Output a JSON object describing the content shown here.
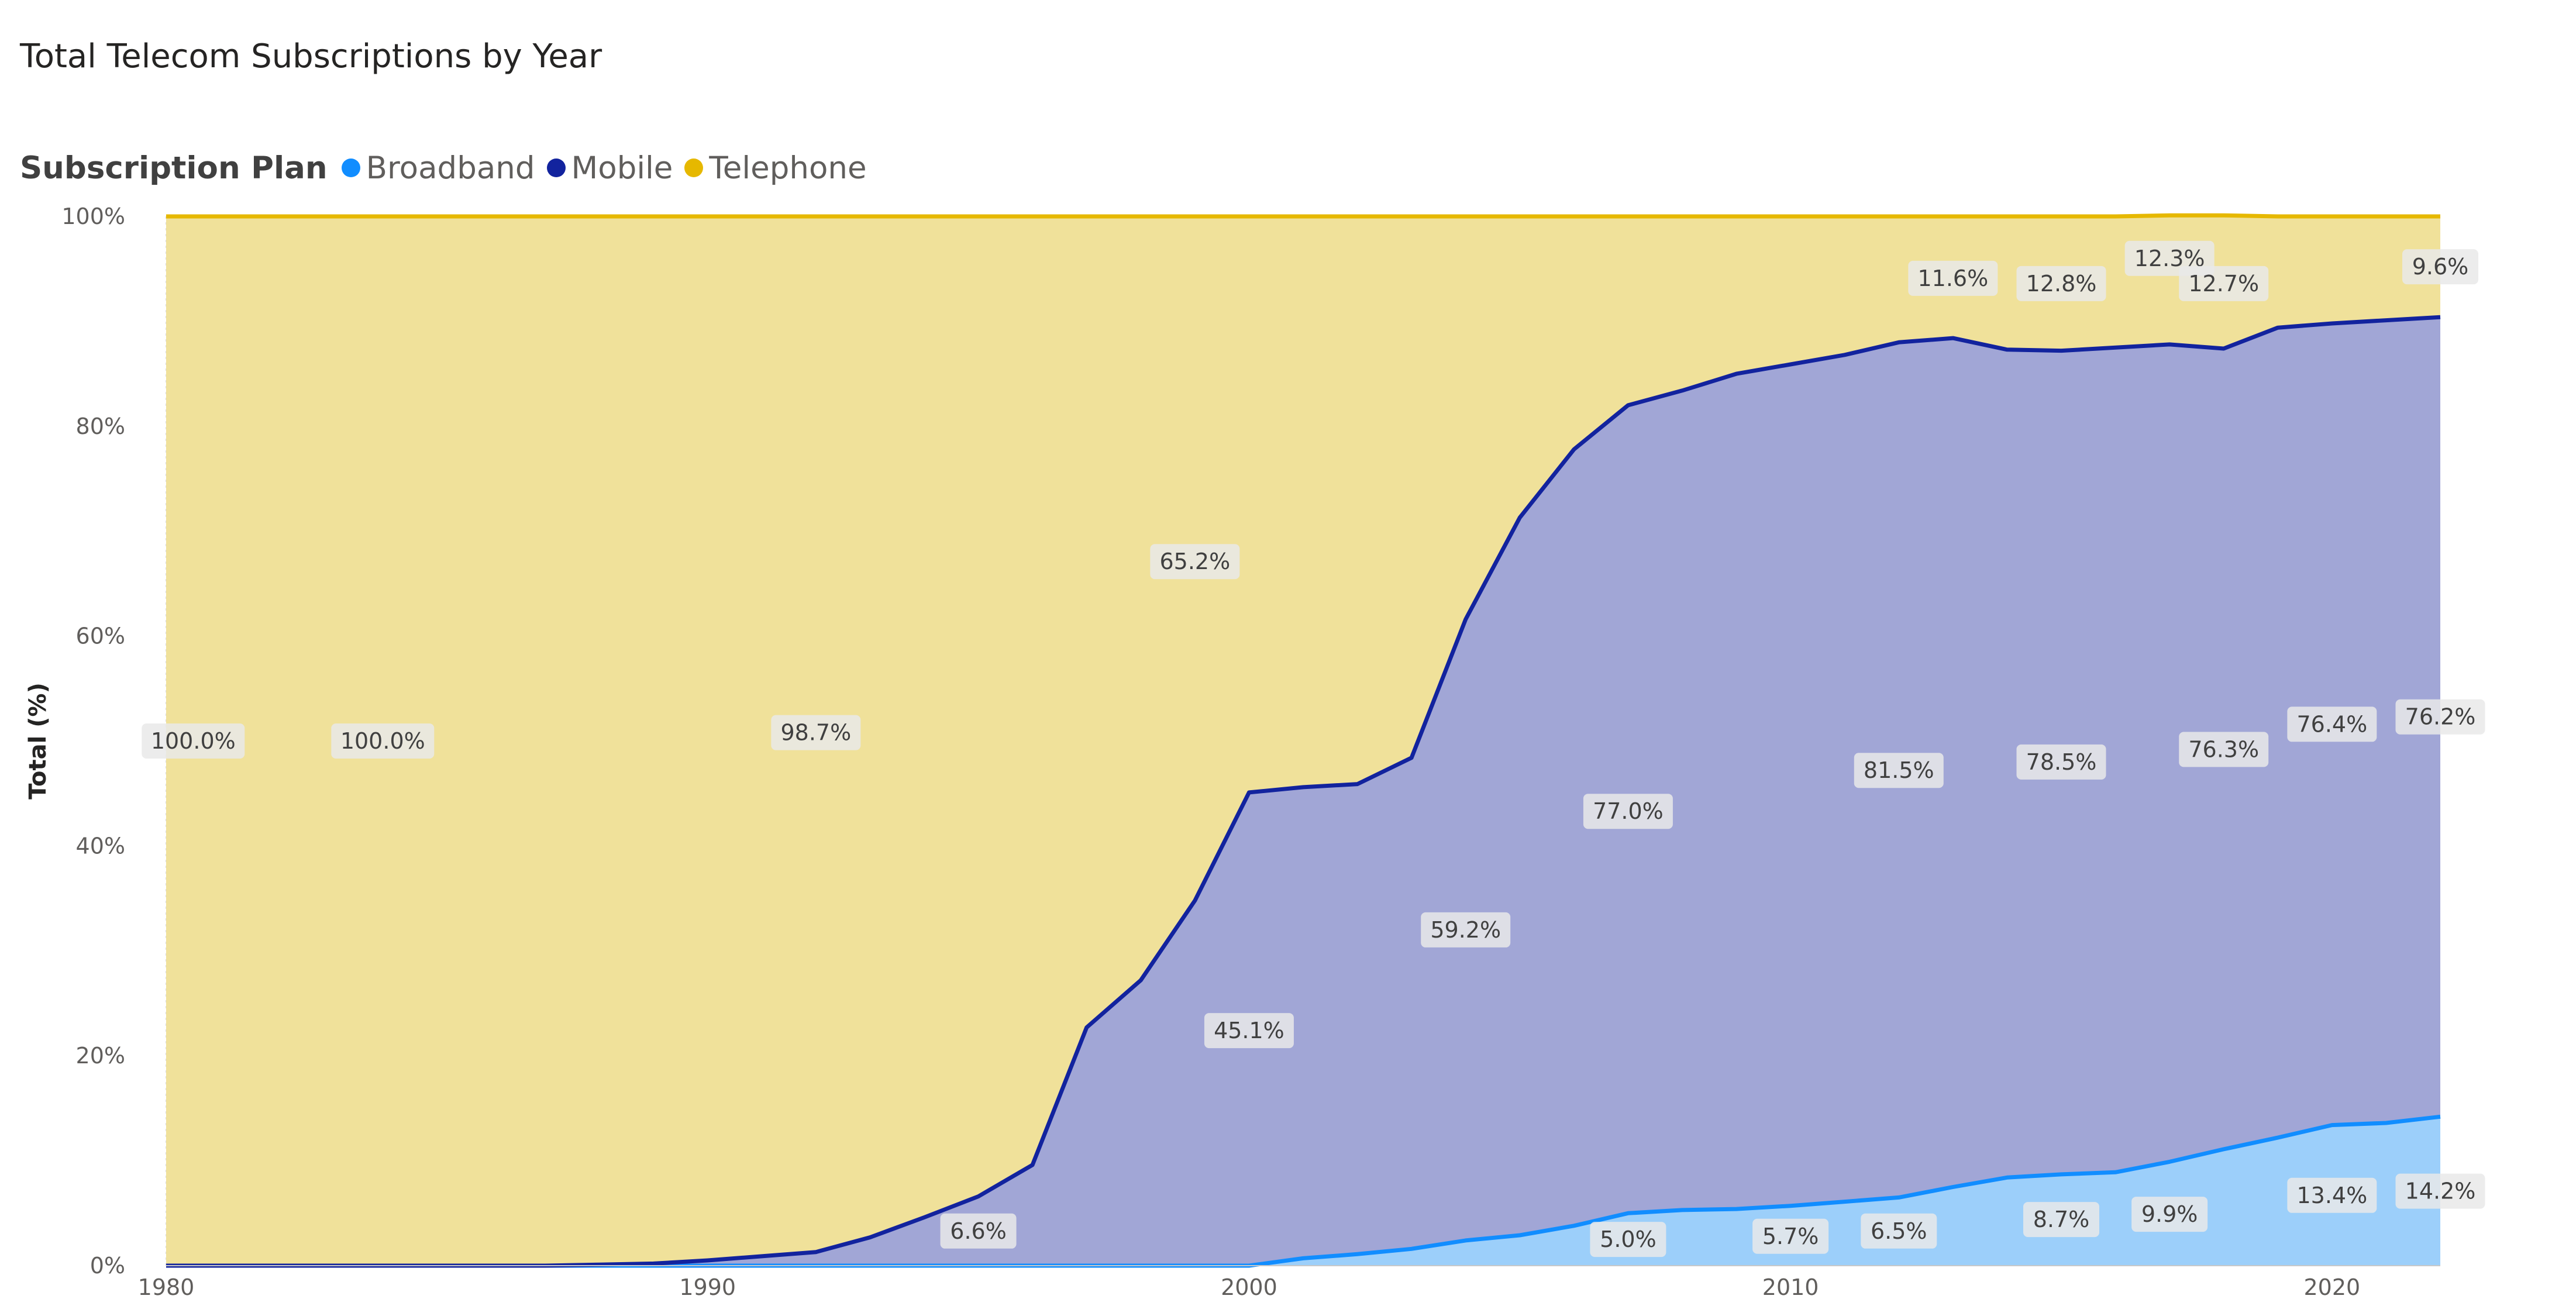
{
  "title": "Total Telecom Subscriptions by Year",
  "legend": {
    "title": "Subscription Plan",
    "items": [
      {
        "label": "Broadband",
        "color": "#118dff"
      },
      {
        "label": "Mobile",
        "color": "#12239e"
      },
      {
        "label": "Telephone",
        "color": "#e6b800"
      }
    ]
  },
  "chart_data": {
    "type": "area",
    "stacking": "percent",
    "ylabel": "Total (%)",
    "xlabel": "",
    "xlim": [
      1980,
      2022
    ],
    "ylim": [
      0,
      100
    ],
    "x_ticks": [
      1980,
      1990,
      2000,
      2010,
      2020
    ],
    "y_ticks": [
      "0%",
      "20%",
      "40%",
      "60%",
      "80%",
      "100%"
    ],
    "grid": {
      "horizontal": false,
      "vertical": true
    },
    "legend_position": "top-left",
    "x": [
      1980,
      1981,
      1982,
      1983,
      1984,
      1985,
      1986,
      1987,
      1988,
      1989,
      1990,
      1991,
      1992,
      1993,
      1994,
      1995,
      1996,
      1997,
      1998,
      1999,
      2000,
      2001,
      2002,
      2003,
      2004,
      2005,
      2006,
      2007,
      2008,
      2009,
      2010,
      2011,
      2012,
      2013,
      2014,
      2015,
      2016,
      2017,
      2018,
      2019,
      2020,
      2021,
      2022
    ],
    "series": [
      {
        "name": "Broadband",
        "color": "#118dff",
        "fill": "#9ccffa",
        "values": [
          0,
          0,
          0,
          0,
          0,
          0,
          0,
          0,
          0,
          0,
          0,
          0,
          0,
          0,
          0,
          0,
          0,
          0,
          0,
          0,
          0,
          0.7,
          1.1,
          1.6,
          2.4,
          2.9,
          3.8,
          5.0,
          5.3,
          5.4,
          5.7,
          6.1,
          6.5,
          7.5,
          8.4,
          8.7,
          8.9,
          9.9,
          11.1,
          12.2,
          13.4,
          13.6,
          14.2
        ]
      },
      {
        "name": "Mobile",
        "color": "#12239e",
        "fill": "#a1a6d6",
        "values": [
          0,
          0,
          0,
          0,
          0,
          0,
          0,
          0,
          0.1,
          0.2,
          0.5,
          0.9,
          1.3,
          2.7,
          4.6,
          6.6,
          9.6,
          22.7,
          27.2,
          34.8,
          45.1,
          44.9,
          44.8,
          46.8,
          59.2,
          68.4,
          74.0,
          77.0,
          78.1,
          79.6,
          80.2,
          80.7,
          81.5,
          80.9,
          78.9,
          78.5,
          78.6,
          77.9,
          76.3,
          77.2,
          76.4,
          76.5,
          76.2
        ]
      },
      {
        "name": "Telephone",
        "color": "#e6b800",
        "fill": "#f0e19a",
        "values": [
          100,
          100,
          100,
          100,
          100,
          100,
          100,
          100,
          99.9,
          99.8,
          99.5,
          99.1,
          98.7,
          97.3,
          95.4,
          93.4,
          90.4,
          77.3,
          72.8,
          65.2,
          54.9,
          54.4,
          54.1,
          51.6,
          38.4,
          28.7,
          22.2,
          18.0,
          16.6,
          15.0,
          14.1,
          13.2,
          12.0,
          11.6,
          12.7,
          12.8,
          12.5,
          12.3,
          12.7,
          10.6,
          10.2,
          9.9,
          9.6
        ]
      }
    ],
    "data_labels": [
      {
        "x": 1980.5,
        "y": 50,
        "text": "100.0%"
      },
      {
        "x": 1984,
        "y": 50,
        "text": "100.0%"
      },
      {
        "x": 1992,
        "y": 50.8,
        "text": "98.7%"
      },
      {
        "x": 1999,
        "y": 67.1,
        "text": "65.2%"
      },
      {
        "x": 1995,
        "y": 3.3,
        "text": "6.6%"
      },
      {
        "x": 2000,
        "y": 22.4,
        "text": "45.1%"
      },
      {
        "x": 2004,
        "y": 32.0,
        "text": "59.2%"
      },
      {
        "x": 2007,
        "y": 43.3,
        "text": "77.0%"
      },
      {
        "x": 2007,
        "y": 2.5,
        "text": "5.0%"
      },
      {
        "x": 2010,
        "y": 2.8,
        "text": "5.7%"
      },
      {
        "x": 2012,
        "y": 3.3,
        "text": "6.5%"
      },
      {
        "x": 2012,
        "y": 47.2,
        "text": "81.5%"
      },
      {
        "x": 2013,
        "y": 94.1,
        "text": "11.6%"
      },
      {
        "x": 2015,
        "y": 4.4,
        "text": "8.7%"
      },
      {
        "x": 2015,
        "y": 48.0,
        "text": "78.5%"
      },
      {
        "x": 2015,
        "y": 93.6,
        "text": "12.8%"
      },
      {
        "x": 2017,
        "y": 4.9,
        "text": "9.9%"
      },
      {
        "x": 2017,
        "y": 96.0,
        "text": "12.3%"
      },
      {
        "x": 2018,
        "y": 49.2,
        "text": "76.3%"
      },
      {
        "x": 2018,
        "y": 93.6,
        "text": "12.7%"
      },
      {
        "x": 2020,
        "y": 6.7,
        "text": "13.4%"
      },
      {
        "x": 2020,
        "y": 51.6,
        "text": "76.4%"
      },
      {
        "x": 2022,
        "y": 7.1,
        "text": "14.2%"
      },
      {
        "x": 2022,
        "y": 52.3,
        "text": "76.2%"
      },
      {
        "x": 2022,
        "y": 95.2,
        "text": "9.6%"
      }
    ]
  }
}
